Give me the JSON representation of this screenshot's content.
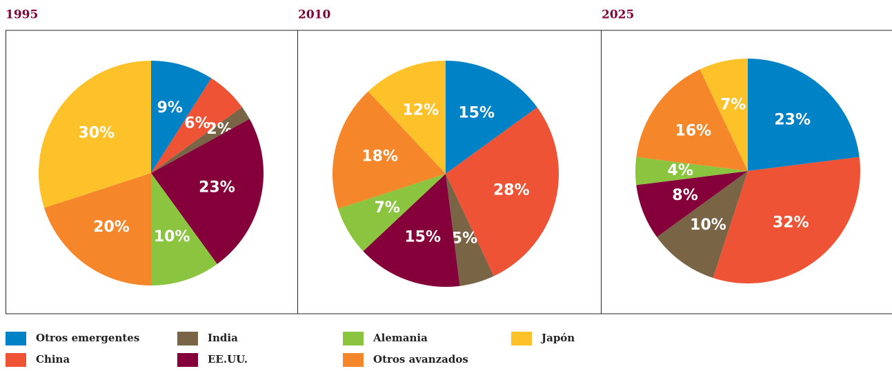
{
  "chart_data": [
    {
      "type": "pie",
      "title": "1995",
      "categories": [
        "Otros emergentes",
        "China",
        "India",
        "EE.UU.",
        "Alemania",
        "Otros avanzados",
        "Japón"
      ],
      "colors": [
        "#0083c6",
        "#ef5335",
        "#7a6446",
        "#85003a",
        "#8bc43f",
        "#f5862a",
        "#fdc12a"
      ],
      "values": [
        9,
        6,
        2,
        23,
        10,
        20,
        30
      ]
    },
    {
      "type": "pie",
      "title": "2010",
      "categories": [
        "Otros emergentes",
        "China",
        "India",
        "EE.UU.",
        "Alemania",
        "Otros avanzados",
        "Japón"
      ],
      "colors": [
        "#0083c6",
        "#ef5335",
        "#7a6446",
        "#85003a",
        "#8bc43f",
        "#f5862a",
        "#fdc12a"
      ],
      "values": [
        15,
        28,
        5,
        15,
        7,
        18,
        12
      ]
    },
    {
      "type": "pie",
      "title": "2025",
      "categories": [
        "Otros emergentes",
        "China",
        "India",
        "EE.UU.",
        "Alemania",
        "Otros avanzados",
        "Japón"
      ],
      "colors": [
        "#0083c6",
        "#ef5335",
        "#7a6446",
        "#85003a",
        "#8bc43f",
        "#f5862a",
        "#fdc12a"
      ],
      "values": [
        23,
        32,
        10,
        8,
        4,
        16,
        7
      ]
    }
  ]
}
